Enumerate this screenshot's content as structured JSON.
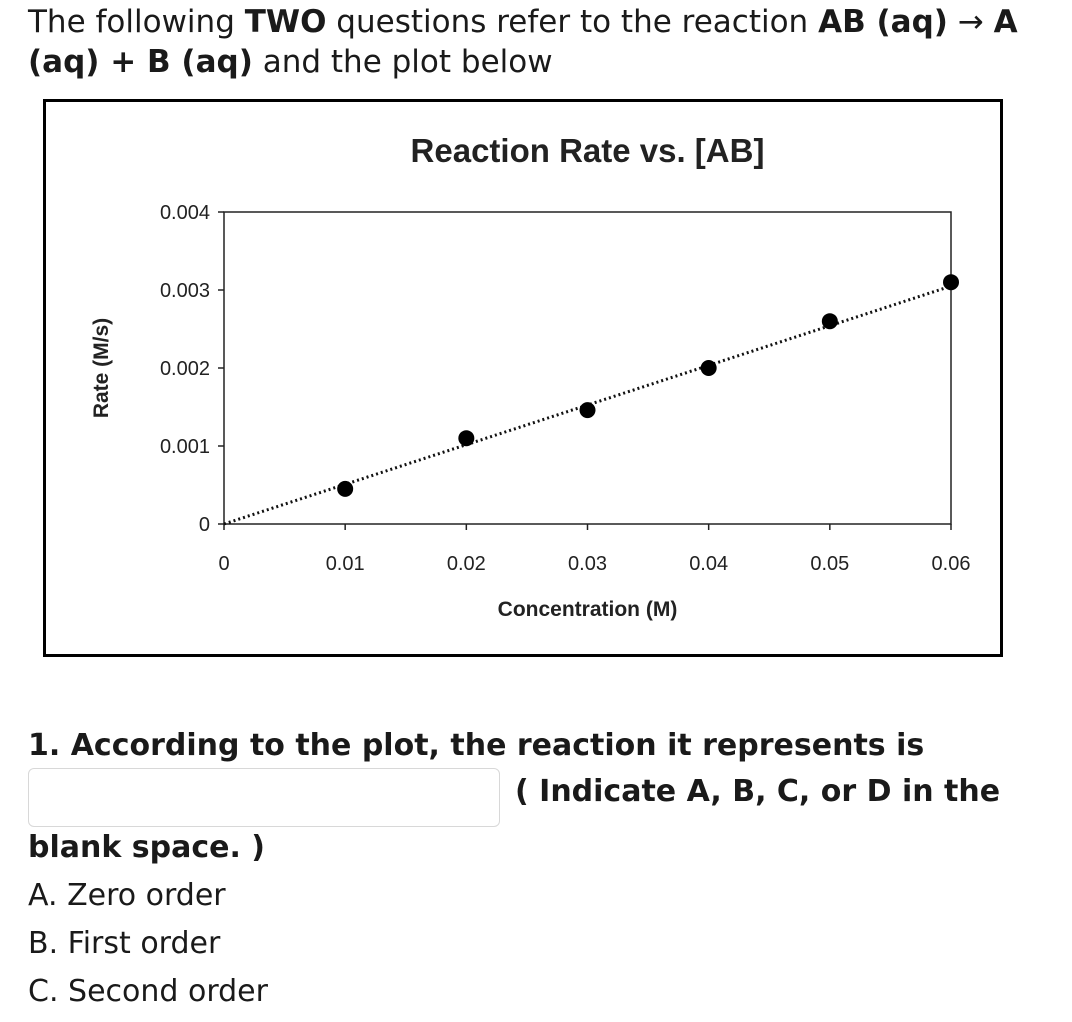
{
  "intro": {
    "t1": "The following ",
    "b1": "TWO",
    "t2": " questions refer to the reaction ",
    "b2": "AB (aq)",
    "arrow": " → ",
    "b3": "A (aq) + B (aq)",
    "t3": " and the plot below"
  },
  "chart_data": {
    "type": "scatter",
    "title": "Reaction Rate vs. [AB]",
    "xlabel": "Concentration (M)",
    "ylabel": "Rate (M/s)",
    "xlim": [
      0,
      0.06
    ],
    "ylim": [
      0,
      0.004
    ],
    "x_ticks": [
      "0",
      "0.01",
      "0.02",
      "0.03",
      "0.04",
      "0.05",
      "0.06"
    ],
    "y_ticks": [
      "0",
      "0.001",
      "0.002",
      "0.003",
      "0.004"
    ],
    "series": [
      {
        "x": [
          0.01,
          0.02,
          0.03,
          0.04,
          0.05,
          0.06
        ],
        "y": [
          0.00045,
          0.0011,
          0.00146,
          0.002,
          0.0026,
          0.0031
        ]
      }
    ],
    "trendline": {
      "style": "dotted",
      "from": [
        0,
        0
      ],
      "to": [
        0.06,
        0.00305
      ]
    },
    "grid": false,
    "legend": "none"
  },
  "question": {
    "line1": "1. According to the plot, the reaction it represents is",
    "suffix": "( Indicate A, B, C, or D in the",
    "line3": "blank space. )",
    "answer_value": ""
  },
  "options": [
    "A. Zero order",
    "B. First order",
    "C. Second order"
  ]
}
